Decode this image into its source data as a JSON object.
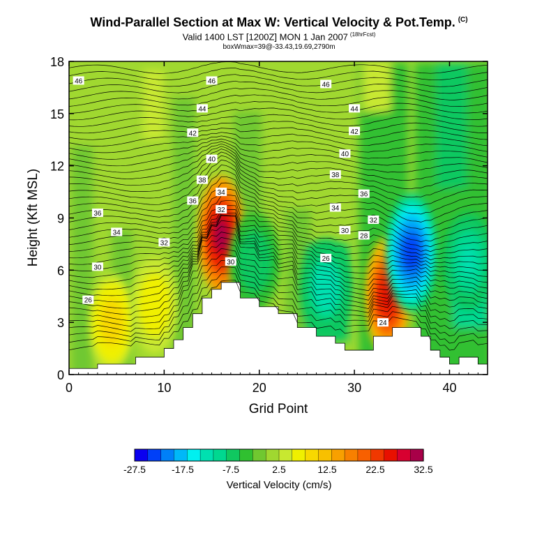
{
  "header": {
    "title": "Wind-Parallel Section at Max W: Vertical Velocity & Pot.Temp.",
    "title_mark": "(C)",
    "subtitle": "Valid 1400 LST [1200Z] MON 1 Jan 2007",
    "subtitle_note": "(18hrFcst)",
    "box_info": "boxWmax=39@-33.43,19.69,2790m"
  },
  "chart_data": {
    "type": "heatmap",
    "title": "Wind-Parallel Section at Max W: Vertical Velocity & Pot.Temp.",
    "xlabel": "Grid Point",
    "ylabel": "Height (Kft MSL)",
    "xlim": [
      0,
      44
    ],
    "ylim": [
      0,
      18
    ],
    "xticks": [
      0,
      10,
      20,
      30,
      40
    ],
    "yticks": [
      0,
      3,
      6,
      9,
      12,
      15,
      18
    ],
    "terrain_kft": [
      [
        0,
        0.35
      ],
      [
        3,
        0.35
      ],
      [
        3,
        0.6
      ],
      [
        7,
        0.6
      ],
      [
        7,
        1.0
      ],
      [
        10,
        1.0
      ],
      [
        10,
        1.5
      ],
      [
        11,
        1.5
      ],
      [
        11,
        2.0
      ],
      [
        12,
        2.0
      ],
      [
        12,
        2.7
      ],
      [
        13,
        2.7
      ],
      [
        13,
        3.5
      ],
      [
        14,
        3.5
      ],
      [
        14,
        4.4
      ],
      [
        15,
        4.4
      ],
      [
        15,
        4.9
      ],
      [
        16,
        4.9
      ],
      [
        16,
        5.3
      ],
      [
        18,
        5.3
      ],
      [
        18,
        4.4
      ],
      [
        20,
        4.4
      ],
      [
        20,
        3.9
      ],
      [
        22,
        3.9
      ],
      [
        22,
        3.5
      ],
      [
        24,
        3.5
      ],
      [
        24,
        2.7
      ],
      [
        26,
        2.7
      ],
      [
        26,
        2.2
      ],
      [
        28,
        2.2
      ],
      [
        28,
        1.8
      ],
      [
        29,
        1.8
      ],
      [
        29,
        1.4
      ],
      [
        32,
        1.4
      ],
      [
        32,
        2.2
      ],
      [
        34,
        2.2
      ],
      [
        34,
        2.7
      ],
      [
        37,
        2.7
      ],
      [
        37,
        2.2
      ],
      [
        38,
        2.2
      ],
      [
        38,
        1.4
      ],
      [
        39,
        1.4
      ],
      [
        39,
        1.0
      ],
      [
        40,
        1.0
      ],
      [
        40,
        0.6
      ],
      [
        41,
        0.6
      ],
      [
        41,
        1.0
      ],
      [
        43,
        1.0
      ],
      [
        43,
        0.6
      ],
      [
        44,
        0.6
      ]
    ],
    "theta_contour_labels": [
      {
        "label": "46",
        "x": 1,
        "y": 16.9
      },
      {
        "label": "46",
        "x": 15,
        "y": 16.9
      },
      {
        "label": "46",
        "x": 27,
        "y": 16.7
      },
      {
        "label": "44",
        "x": 14,
        "y": 15.3
      },
      {
        "label": "44",
        "x": 30,
        "y": 15.3
      },
      {
        "label": "42",
        "x": 13,
        "y": 13.9
      },
      {
        "label": "42",
        "x": 30,
        "y": 14.0
      },
      {
        "label": "40",
        "x": 15,
        "y": 12.4
      },
      {
        "label": "40",
        "x": 29,
        "y": 12.7
      },
      {
        "label": "38",
        "x": 14,
        "y": 11.2
      },
      {
        "label": "38",
        "x": 28,
        "y": 11.5
      },
      {
        "label": "36",
        "x": 3,
        "y": 9.3
      },
      {
        "label": "36",
        "x": 13,
        "y": 10.0
      },
      {
        "label": "36",
        "x": 31,
        "y": 10.4
      },
      {
        "label": "34",
        "x": 5,
        "y": 8.2
      },
      {
        "label": "34",
        "x": 16,
        "y": 10.5
      },
      {
        "label": "34",
        "x": 28,
        "y": 9.6
      },
      {
        "label": "32",
        "x": 10,
        "y": 7.6
      },
      {
        "label": "32",
        "x": 16,
        "y": 9.5
      },
      {
        "label": "32",
        "x": 32,
        "y": 8.9
      },
      {
        "label": "30",
        "x": 3,
        "y": 6.2
      },
      {
        "label": "30",
        "x": 17,
        "y": 6.5
      },
      {
        "label": "30",
        "x": 29,
        "y": 8.3
      },
      {
        "label": "28",
        "x": 31,
        "y": 8.0
      },
      {
        "label": "26",
        "x": 2,
        "y": 4.3
      },
      {
        "label": "26",
        "x": 27,
        "y": 6.7
      },
      {
        "label": "24",
        "x": 33,
        "y": 3.0
      }
    ],
    "w_features_cms": [
      {
        "x": 16.0,
        "y": 8.0,
        "w": 33,
        "label": "updraft core"
      },
      {
        "x": 33.5,
        "y": 4.5,
        "w": 28,
        "label": "updraft"
      },
      {
        "x": 36.0,
        "y": 7.0,
        "w": -25,
        "label": "downdraft"
      },
      {
        "x": 27.0,
        "y": 5.0,
        "w": -15,
        "label": "downdraft"
      },
      {
        "x": 19.5,
        "y": 6.5,
        "w": -9,
        "label": "downdraft"
      },
      {
        "x": 42.0,
        "y": 6.5,
        "w": -14,
        "label": "downdraft"
      },
      {
        "x": 4.5,
        "y": 3.0,
        "w": 10,
        "label": "updraft"
      },
      {
        "x": 9.0,
        "y": 4.0,
        "w": 8,
        "label": "updraft"
      }
    ]
  },
  "colorbar": {
    "label": "Vertical Velocity (cm/s)",
    "tick_labels": [
      "-27.5",
      "-17.5",
      "-7.5",
      "2.5",
      "12.5",
      "22.5",
      "32.5"
    ],
    "colors": [
      "#0a00f0",
      "#0040f8",
      "#0080f8",
      "#00b8f8",
      "#00f0f0",
      "#00e0b0",
      "#00d890",
      "#10c860",
      "#30c030",
      "#70c830",
      "#a0d830",
      "#c8e830",
      "#f0f000",
      "#f8d800",
      "#f8c000",
      "#f8a000",
      "#f88000",
      "#f86000",
      "#f03800",
      "#e81000",
      "#d80030",
      "#a80048"
    ]
  }
}
